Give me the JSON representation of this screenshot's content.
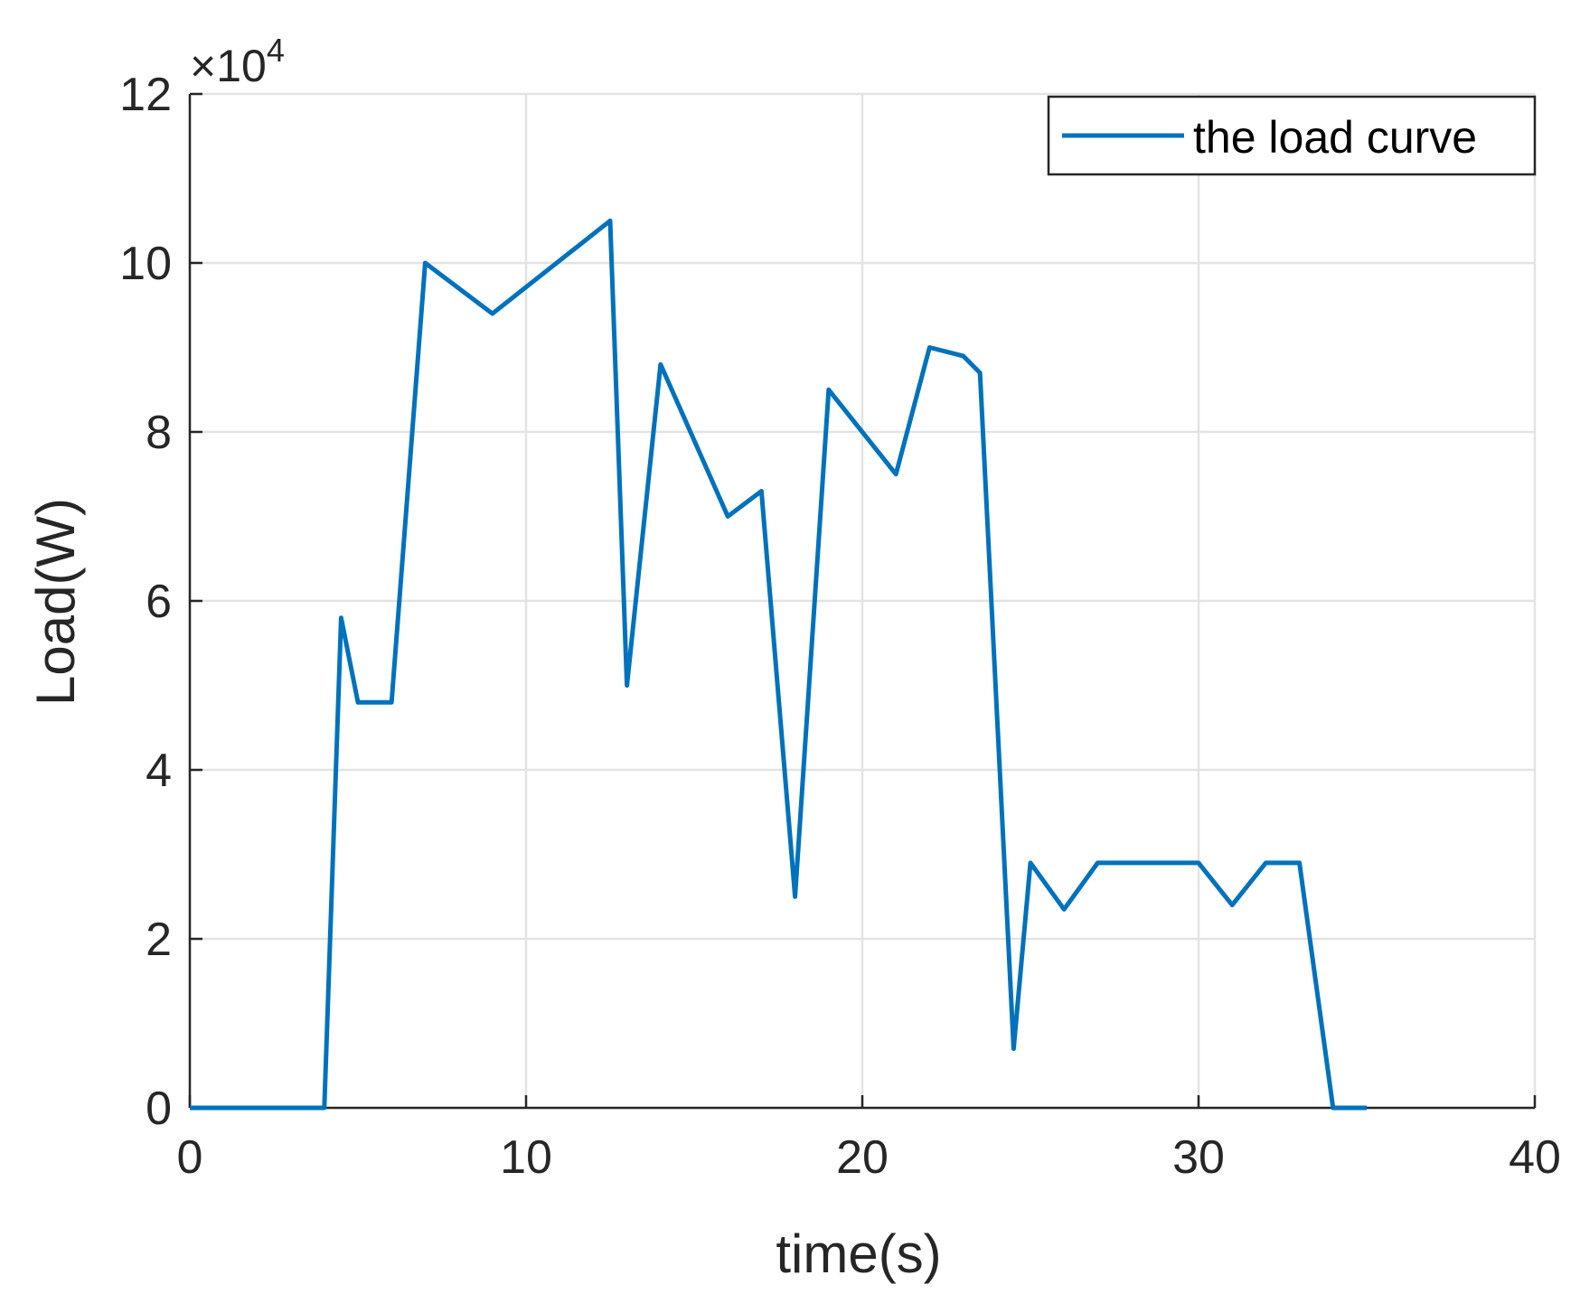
{
  "chart_data": {
    "type": "line",
    "title": "",
    "xlabel": "time(s)",
    "ylabel": "Load(W)",
    "y_exponent_label": "×10",
    "y_exponent_power": "4",
    "xlim": [
      0,
      40
    ],
    "ylim": [
      0,
      12
    ],
    "x_ticks": [
      "0",
      "10",
      "20",
      "30",
      "40"
    ],
    "y_ticks": [
      "0",
      "2",
      "4",
      "6",
      "8",
      "10",
      "12"
    ],
    "grid": true,
    "legend_position": "top-right",
    "series": [
      {
        "name": "the load curve",
        "color": "#0072BD",
        "x": [
          0,
          4,
          4.5,
          5,
          6,
          7,
          9,
          12.5,
          13,
          14,
          16,
          17,
          18,
          19,
          21,
          22,
          23,
          23.5,
          24.5,
          25,
          26,
          27,
          30,
          31,
          32,
          33,
          34,
          35
        ],
        "y": [
          0,
          0,
          5.8,
          4.8,
          4.8,
          10,
          9.4,
          10.5,
          5.0,
          8.8,
          7.0,
          7.3,
          2.5,
          8.5,
          7.5,
          9.0,
          8.9,
          8.7,
          0.7,
          2.9,
          2.35,
          2.9,
          2.9,
          2.4,
          2.9,
          2.9,
          0,
          0
        ]
      }
    ]
  }
}
